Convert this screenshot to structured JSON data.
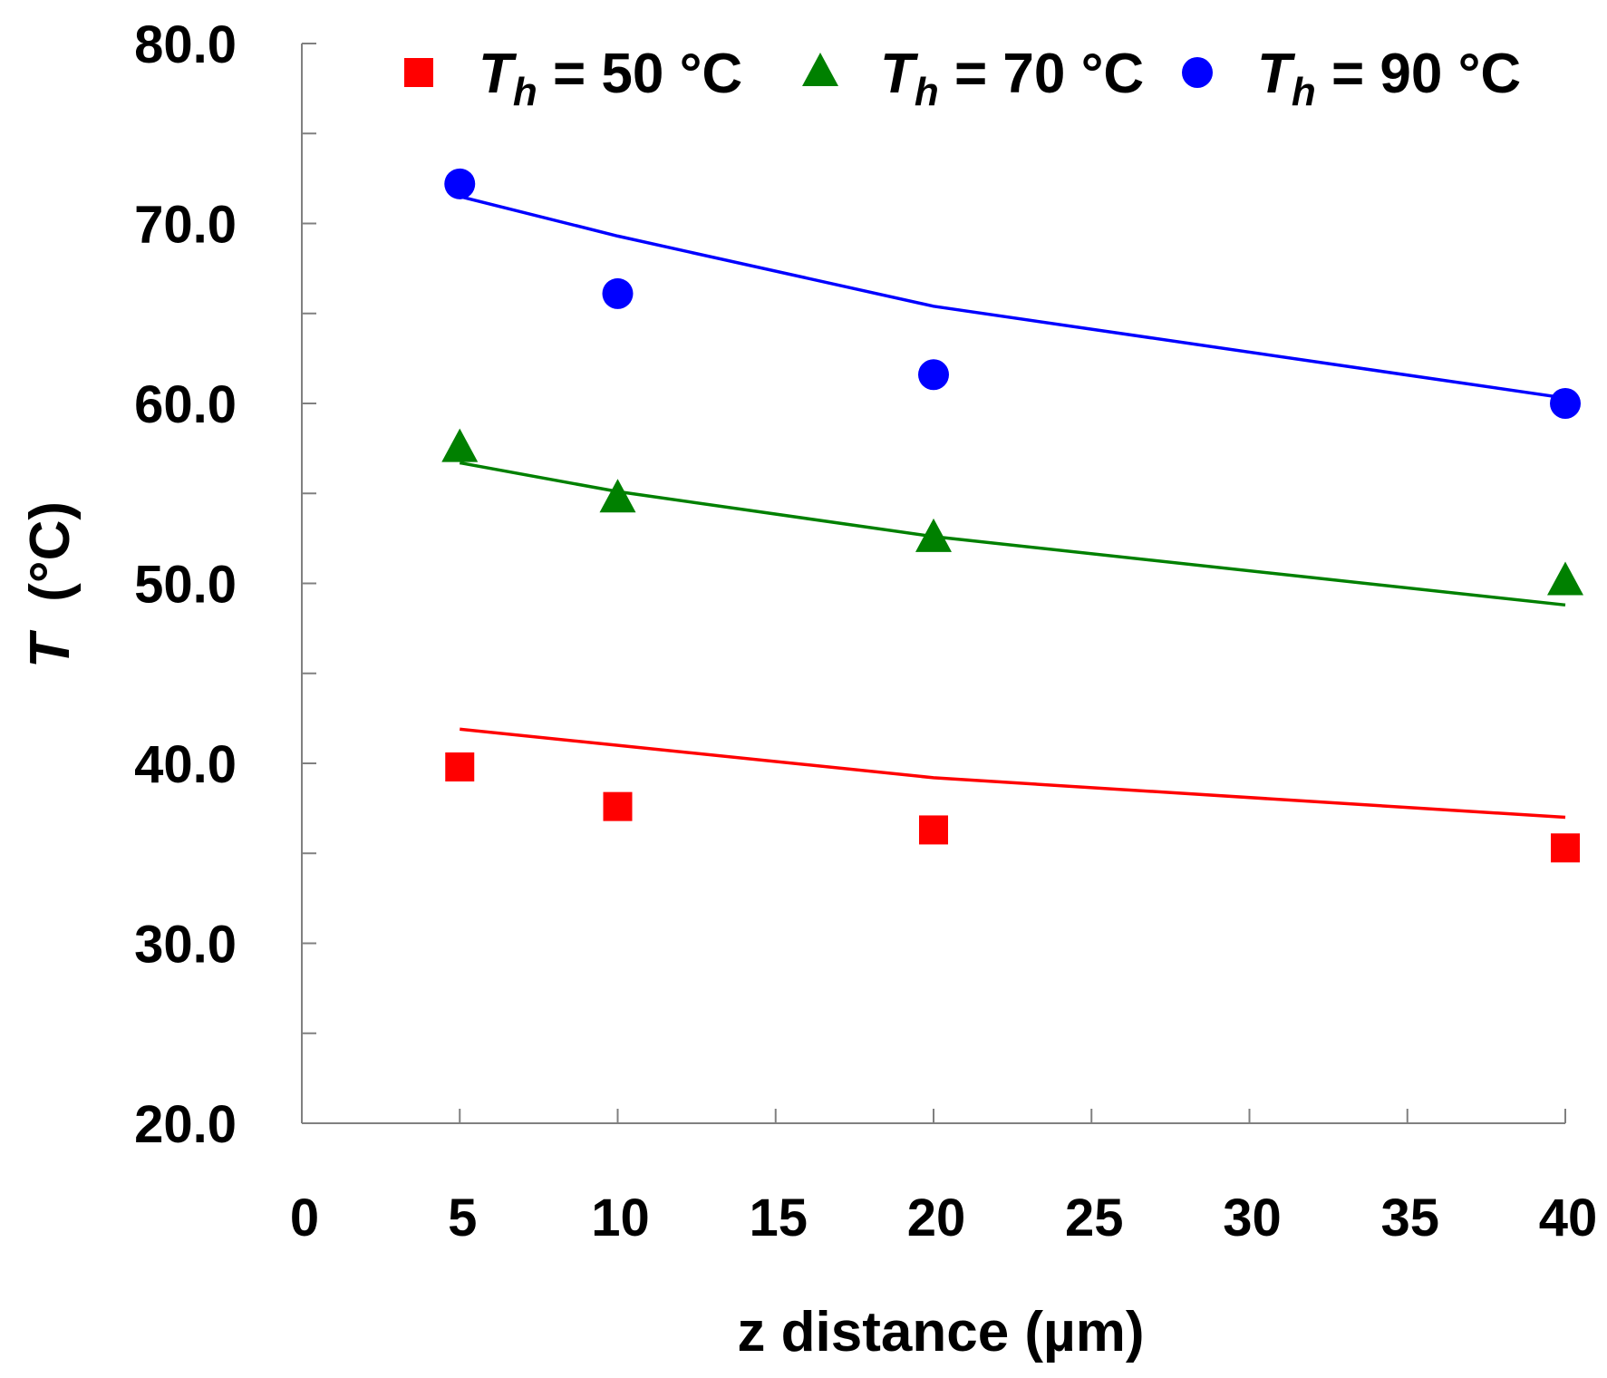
{
  "chart_data": {
    "type": "scatter",
    "xlabel": "z distance (µm)",
    "ylabel": {
      "symbol": "T",
      "unit": "(°C)"
    },
    "xlim": [
      0,
      40
    ],
    "ylim": [
      20,
      80
    ],
    "x_ticks": [
      "0",
      "5",
      "10",
      "15",
      "20",
      "25",
      "30",
      "35",
      "40"
    ],
    "y_ticks": [
      "20.0",
      "30.0",
      "40.0",
      "50.0",
      "60.0",
      "70.0",
      "80.0"
    ],
    "legend_position": "top",
    "series": [
      {
        "name": "T_h = 50 °C",
        "label": {
          "symbol": "T",
          "subscript": "h",
          "rest": " = 50 °C"
        },
        "color": "#ff0000",
        "marker": "square",
        "x": [
          5,
          10,
          20,
          40
        ],
        "measured": [
          39.8,
          37.6,
          36.3,
          35.3
        ],
        "model": [
          41.9,
          41.0,
          39.2,
          37.0
        ]
      },
      {
        "name": "T_h = 70 °C",
        "label": {
          "symbol": "T",
          "subscript": "h",
          "rest": " = 70 °C"
        },
        "color": "#008000",
        "marker": "triangle",
        "x": [
          5,
          10,
          20,
          40
        ],
        "measured": [
          57.5,
          54.7,
          52.5,
          50.1
        ],
        "model": [
          56.7,
          55.1,
          52.6,
          48.8
        ]
      },
      {
        "name": "T_h = 90 °C",
        "label": {
          "symbol": "T",
          "subscript": "h",
          "rest": " = 90 °C"
        },
        "color": "#0000ff",
        "marker": "circle",
        "x": [
          5,
          10,
          20,
          40
        ],
        "measured": [
          72.2,
          66.1,
          61.6,
          60.0
        ],
        "model": [
          71.5,
          69.3,
          65.4,
          60.3
        ]
      }
    ]
  }
}
